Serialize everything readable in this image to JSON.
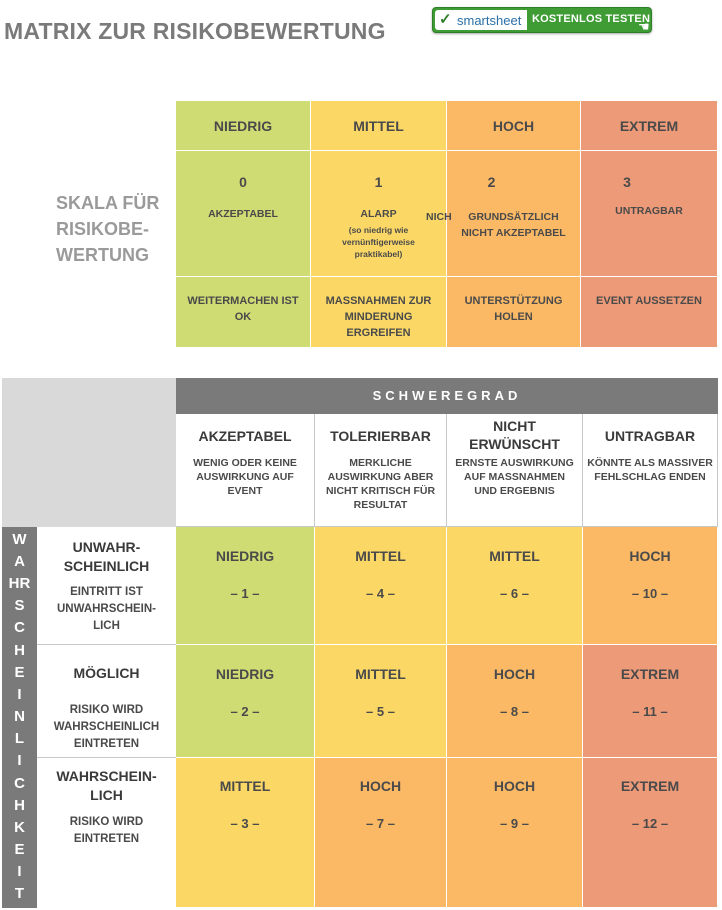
{
  "title": "MATRIX ZUR RISIKOBEWERTUNG",
  "smartsheet": {
    "logo": "smartsheet",
    "label": "KOSTENLOS TESTEN"
  },
  "scale": {
    "label_lines": [
      "SKALA FÜR",
      "RISIKOBE-",
      "WERTUNG"
    ],
    "columns": [
      {
        "level": "NIEDRIG",
        "number": "0",
        "desc": [
          "AKZEPTABEL"
        ],
        "note": [],
        "action": [
          "WEITERMACHEN IST",
          "OK"
        ],
        "color": "#cfdc74"
      },
      {
        "level": "MITTEL",
        "number": "1",
        "desc": [
          "ALARP"
        ],
        "note": [
          "(so niedrig wie",
          "vernünftigerweise",
          "praktikabel)"
        ],
        "action": [
          "MASSNAHMEN ZUR",
          "MINDERUNG",
          "ERGREIFEN"
        ],
        "color": "#fbd866"
      },
      {
        "level": "HOCH",
        "number": "2",
        "desc": [
          "GRUNDSÄTZLICH",
          "NICHT AKZEPTABEL"
        ],
        "note": [],
        "action": [
          "UNTERSTÜTZUNG",
          "HOLEN"
        ],
        "color": "#fbb965"
      },
      {
        "level": "EXTREM",
        "number": "3",
        "desc": [
          "UNTRAGBAR"
        ],
        "note": [],
        "action": [
          "EVENT AUSSETZEN"
        ],
        "color": "#ec9a78"
      }
    ],
    "overflow_text": "NICH"
  },
  "severity": {
    "header": "SCHWEREGRAD",
    "columns": [
      {
        "title": [
          "AKZEPTABEL"
        ],
        "desc": [
          "WENIG ODER KEINE",
          "AUSWIRKUNG AUF",
          "EVENT"
        ]
      },
      {
        "title": [
          "TOLERIERBAR"
        ],
        "desc": [
          "MERKLICHE",
          "AUSWIRKUNG ABER",
          "NICHT KRITISCH FÜR",
          "RESULTAT"
        ]
      },
      {
        "title": [
          "NICHT",
          "ERWÜNSCHT"
        ],
        "desc": [
          "ERNSTE AUSWIRKUNG",
          "AUF MASSNAHMEN",
          "UND ERGEBNIS"
        ]
      },
      {
        "title": [
          "UNTRAGBAR"
        ],
        "desc": [
          "KÖNNTE ALS MASSIVER",
          "FEHLSCHLAG ENDEN"
        ]
      }
    ]
  },
  "likelihood": {
    "vertical_letters": [
      "W",
      "A",
      "HR",
      "S",
      "C",
      "H",
      "E",
      "I",
      "N",
      "L",
      "I",
      "C",
      "H",
      "K",
      "E",
      "I",
      "T"
    ],
    "rows": [
      {
        "title": [
          "UNWAHR-",
          "SCHEINLICH"
        ],
        "desc": [
          "EINTRITT IST",
          "UNWAHRSCHEIN-",
          "LICH"
        ]
      },
      {
        "title": [
          "MÖGLICH"
        ],
        "desc": [
          "RISIKO WIRD",
          "WAHRSCHEINLICH",
          "EINTRETEN"
        ]
      },
      {
        "title": [
          "WAHRSCHEIN-",
          "LICH"
        ],
        "desc": [
          "RISIKO WIRD",
          "EINTRETEN"
        ]
      }
    ]
  },
  "matrix": [
    [
      {
        "level": "NIEDRIG",
        "num": "– 1 –",
        "color": "#cfdc74"
      },
      {
        "level": "MITTEL",
        "num": "– 4 –",
        "color": "#fbd866"
      },
      {
        "level": "MITTEL",
        "num": "– 6 –",
        "color": "#fbd866"
      },
      {
        "level": "HOCH",
        "num": "– 10 –",
        "color": "#fbb965"
      }
    ],
    [
      {
        "level": "NIEDRIG",
        "num": "– 2 –",
        "color": "#cfdc74"
      },
      {
        "level": "MITTEL",
        "num": "– 5 –",
        "color": "#fbd866"
      },
      {
        "level": "HOCH",
        "num": "– 8 –",
        "color": "#fbb965"
      },
      {
        "level": "EXTREM",
        "num": "– 11 –",
        "color": "#ec9a78"
      }
    ],
    [
      {
        "level": "MITTEL",
        "num": "– 3 –",
        "color": "#fbd866"
      },
      {
        "level": "HOCH",
        "num": "– 7 –",
        "color": "#fbb965"
      },
      {
        "level": "HOCH",
        "num": "– 9 –",
        "color": "#fbb965"
      },
      {
        "level": "EXTREM",
        "num": "– 12 –",
        "color": "#ec9a78"
      }
    ]
  ]
}
